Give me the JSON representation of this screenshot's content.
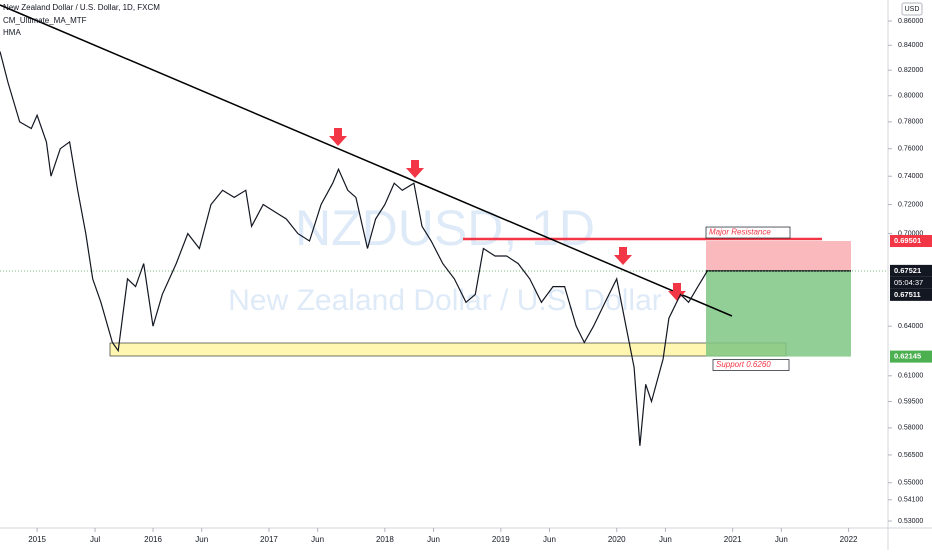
{
  "chart_data": {
    "type": "line",
    "title": "New Zealand Dollar / U.S. Dollar, 1D, FXCM",
    "legend": [
      "CM_Ultimate_MA_MTF",
      "HMA"
    ],
    "watermark": [
      "NZDUSD, 1D",
      "New Zealand Dollar / U.S. Dollar"
    ],
    "currency": "USD",
    "log_scale": true,
    "x": [
      2014.68,
      2014.75,
      2014.85,
      2014.95,
      2015.0,
      2015.08,
      2015.12,
      2015.2,
      2015.28,
      2015.35,
      2015.42,
      2015.48,
      2015.55,
      2015.65,
      2015.7,
      2015.78,
      2015.85,
      2015.92,
      2016.0,
      2016.08,
      2016.2,
      2016.3,
      2016.4,
      2016.5,
      2016.6,
      2016.7,
      2016.8,
      2016.85,
      2016.95,
      2017.05,
      2017.15,
      2017.25,
      2017.35,
      2017.45,
      2017.55,
      2017.6,
      2017.68,
      2017.75,
      2017.85,
      2017.92,
      2018.0,
      2018.08,
      2018.15,
      2018.25,
      2018.32,
      2018.4,
      2018.5,
      2018.6,
      2018.7,
      2018.78,
      2018.85,
      2018.95,
      2019.05,
      2019.15,
      2019.25,
      2019.35,
      2019.45,
      2019.55,
      2019.65,
      2019.72,
      2019.8,
      2019.9,
      2020.0,
      2020.08,
      2020.15,
      2020.2,
      2020.25,
      2020.3,
      2020.4,
      2020.45,
      2020.55,
      2020.62,
      2020.7,
      2020.78
    ],
    "series": [
      {
        "color": "#131722",
        "values": [
          0.835,
          0.81,
          0.78,
          0.775,
          0.785,
          0.765,
          0.74,
          0.76,
          0.765,
          0.73,
          0.7,
          0.67,
          0.655,
          0.63,
          0.625,
          0.67,
          0.665,
          0.68,
          0.64,
          0.66,
          0.68,
          0.7,
          0.69,
          0.72,
          0.73,
          0.725,
          0.73,
          0.705,
          0.72,
          0.715,
          0.71,
          0.7,
          0.695,
          0.72,
          0.735,
          0.745,
          0.73,
          0.725,
          0.69,
          0.71,
          0.72,
          0.735,
          0.73,
          0.735,
          0.705,
          0.695,
          0.68,
          0.67,
          0.655,
          0.66,
          0.69,
          0.685,
          0.685,
          0.68,
          0.67,
          0.655,
          0.665,
          0.665,
          0.64,
          0.63,
          0.64,
          0.655,
          0.67,
          0.64,
          0.615,
          0.57,
          0.605,
          0.595,
          0.62,
          0.645,
          0.66,
          0.655,
          0.665,
          0.675
        ]
      }
    ],
    "xlim": [
      2014.68,
      2022.34
    ],
    "xticks": [
      {
        "value": 2015,
        "label": "2015"
      },
      {
        "value": 2015.5,
        "label": "Jul"
      },
      {
        "value": 2016,
        "label": "2016"
      },
      {
        "value": 2016.42,
        "label": "Jun"
      },
      {
        "value": 2017,
        "label": "2017"
      },
      {
        "value": 2017.42,
        "label": "Jun"
      },
      {
        "value": 2018,
        "label": "2018"
      },
      {
        "value": 2018.42,
        "label": "Jun"
      },
      {
        "value": 2019,
        "label": "2019"
      },
      {
        "value": 2019.42,
        "label": "Jun"
      },
      {
        "value": 2020,
        "label": "2020"
      },
      {
        "value": 2020.42,
        "label": "Jun"
      },
      {
        "value": 2021,
        "label": "2021"
      },
      {
        "value": 2021.42,
        "label": "Jun"
      },
      {
        "value": 2022,
        "label": "2022"
      }
    ],
    "ylim": [
      0.53,
      0.86
    ],
    "yticks": [
      {
        "value": 0.86,
        "label": "0.86000"
      },
      {
        "value": 0.84,
        "label": "0.84000"
      },
      {
        "value": 0.82,
        "label": "0.82000"
      },
      {
        "value": 0.8,
        "label": "0.80000"
      },
      {
        "value": 0.78,
        "label": "0.78000"
      },
      {
        "value": 0.76,
        "label": "0.76000"
      },
      {
        "value": 0.74,
        "label": "0.74000"
      },
      {
        "value": 0.72,
        "label": "0.72000"
      },
      {
        "value": 0.7,
        "label": "0.70000"
      },
      {
        "value": 0.64,
        "label": "0.64000"
      },
      {
        "value": 0.61,
        "label": "0.61000"
      },
      {
        "value": 0.595,
        "label": "0.59500"
      },
      {
        "value": 0.58,
        "label": "0.58000"
      },
      {
        "value": 0.565,
        "label": "0.56500"
      },
      {
        "value": 0.55,
        "label": "0.55000"
      },
      {
        "value": 0.541,
        "label": "0.54100"
      },
      {
        "value": 0.53,
        "label": "0.53000"
      }
    ],
    "levels": [
      {
        "value": 0.69501,
        "label": "0.69501",
        "color": "#f23645"
      },
      {
        "value": 0.67521,
        "label": "0.67521",
        "color": "#131722"
      },
      {
        "value": 0.67511,
        "label": "0.67511",
        "color": "#131722"
      },
      {
        "value": 0.62145,
        "label": "0.62145",
        "color": "#4caf50"
      }
    ],
    "countdown": "05:04:37",
    "annotations": [
      "Major Resistance",
      "Support 0.6260"
    ]
  }
}
